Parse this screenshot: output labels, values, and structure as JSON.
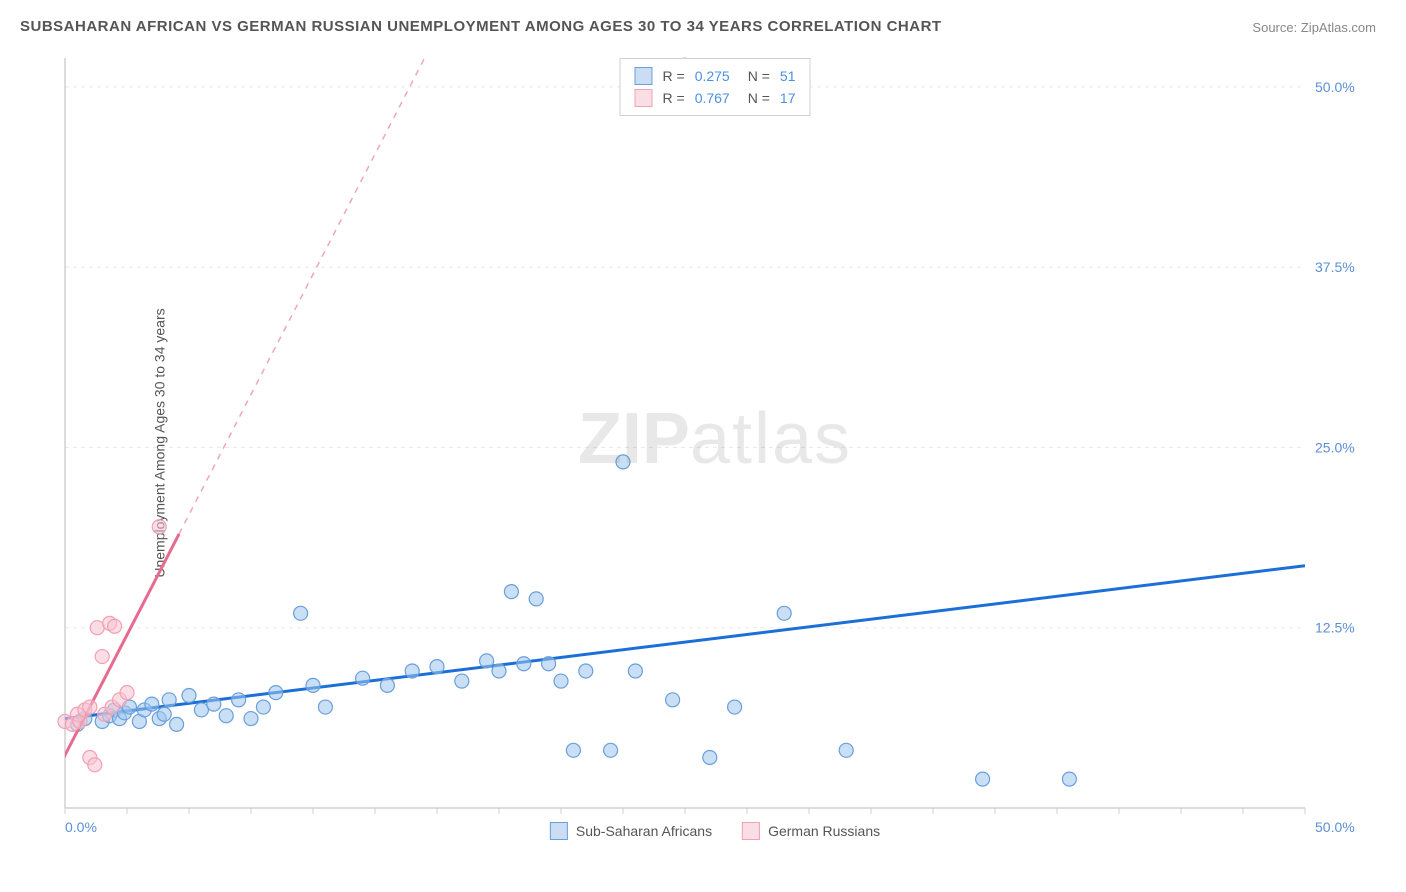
{
  "title": "SUBSAHARAN AFRICAN VS GERMAN RUSSIAN UNEMPLOYMENT AMONG AGES 30 TO 34 YEARS CORRELATION CHART",
  "source_label": "Source:",
  "source_value": "ZipAtlas.com",
  "y_axis_label": "Unemployment Among Ages 30 to 34 years",
  "watermark_part1": "ZIP",
  "watermark_part2": "atlas",
  "chart": {
    "type": "scatter",
    "xlim": [
      0,
      50
    ],
    "ylim": [
      0,
      52
    ],
    "x_ticks": [
      0,
      50
    ],
    "x_tick_labels": [
      "0.0%",
      "50.0%"
    ],
    "y_ticks": [
      12.5,
      25.0,
      37.5,
      50.0
    ],
    "y_tick_labels": [
      "12.5%",
      "25.0%",
      "37.5%",
      "50.0%"
    ],
    "x_minor_tick_step": 2.5,
    "grid_color": "#e8e8e8",
    "axis_color": "#d0d0d0",
    "tick_label_color": "#5b8fd6",
    "background_color": "#ffffff",
    "marker_radius": 7,
    "legend_stats": [
      {
        "series": "blue",
        "r_label": "R =",
        "r_value": "0.275",
        "n_label": "N =",
        "n_value": "51"
      },
      {
        "series": "pink",
        "r_label": "R =",
        "r_value": "0.767",
        "n_label": "N =",
        "n_value": "17"
      }
    ],
    "legend_bottom": [
      {
        "color": "blue",
        "label": "Sub-Saharan Africans"
      },
      {
        "color": "pink",
        "label": "German Russians"
      }
    ],
    "series": [
      {
        "name": "Sub-Saharan Africans",
        "marker_fill": "rgba(157,197,238,0.55)",
        "marker_stroke": "#6b9fdb",
        "trend_color": "#1b6fd6",
        "trend_width": 3,
        "trend": {
          "x1": 0,
          "y1": 6.2,
          "x2": 50,
          "y2": 16.8
        },
        "points": [
          [
            0.5,
            5.8
          ],
          [
            0.8,
            6.2
          ],
          [
            1.5,
            6.0
          ],
          [
            1.8,
            6.4
          ],
          [
            2.0,
            6.8
          ],
          [
            2.2,
            6.2
          ],
          [
            2.4,
            6.6
          ],
          [
            2.6,
            7.0
          ],
          [
            3.0,
            6.0
          ],
          [
            3.2,
            6.8
          ],
          [
            3.5,
            7.2
          ],
          [
            3.8,
            6.2
          ],
          [
            4.0,
            6.5
          ],
          [
            4.2,
            7.5
          ],
          [
            4.5,
            5.8
          ],
          [
            5.0,
            7.8
          ],
          [
            5.5,
            6.8
          ],
          [
            6.0,
            7.2
          ],
          [
            6.5,
            6.4
          ],
          [
            7.0,
            7.5
          ],
          [
            7.5,
            6.2
          ],
          [
            8.0,
            7.0
          ],
          [
            8.5,
            8.0
          ],
          [
            9.5,
            13.5
          ],
          [
            10.0,
            8.5
          ],
          [
            10.5,
            7.0
          ],
          [
            12.0,
            9.0
          ],
          [
            13.0,
            8.5
          ],
          [
            14.0,
            9.5
          ],
          [
            15.0,
            9.8
          ],
          [
            16.0,
            8.8
          ],
          [
            17.0,
            10.2
          ],
          [
            17.5,
            9.5
          ],
          [
            18.0,
            15.0
          ],
          [
            18.5,
            10.0
          ],
          [
            19.0,
            14.5
          ],
          [
            19.5,
            10.0
          ],
          [
            20.0,
            8.8
          ],
          [
            20.5,
            4.0
          ],
          [
            21.0,
            9.5
          ],
          [
            22.0,
            4.0
          ],
          [
            22.5,
            24.0
          ],
          [
            23.0,
            9.5
          ],
          [
            24.5,
            7.5
          ],
          [
            25.0,
            51.5
          ],
          [
            26.0,
            3.5
          ],
          [
            27.0,
            7.0
          ],
          [
            29.0,
            13.5
          ],
          [
            31.5,
            4.0
          ],
          [
            37.0,
            2.0
          ],
          [
            40.5,
            2.0
          ]
        ]
      },
      {
        "name": "German Russians",
        "marker_fill": "rgba(248,195,208,0.55)",
        "marker_stroke": "#f2a0b4",
        "trend_color": "#e86a8e",
        "trend_width": 3,
        "trend_dash_after_y": 19,
        "trend": {
          "x1": -0.5,
          "y1": 2.0,
          "x2": 14.5,
          "y2": 52.0
        },
        "points": [
          [
            0.0,
            6.0
          ],
          [
            0.3,
            5.8
          ],
          [
            0.5,
            6.5
          ],
          [
            0.6,
            6.0
          ],
          [
            0.8,
            6.8
          ],
          [
            1.0,
            7.0
          ],
          [
            1.0,
            3.5
          ],
          [
            1.2,
            3.0
          ],
          [
            1.3,
            12.5
          ],
          [
            1.5,
            10.5
          ],
          [
            1.6,
            6.5
          ],
          [
            1.8,
            12.8
          ],
          [
            1.9,
            7.0
          ],
          [
            2.0,
            12.6
          ],
          [
            2.2,
            7.5
          ],
          [
            2.5,
            8.0
          ],
          [
            3.8,
            19.5
          ]
        ]
      }
    ]
  }
}
